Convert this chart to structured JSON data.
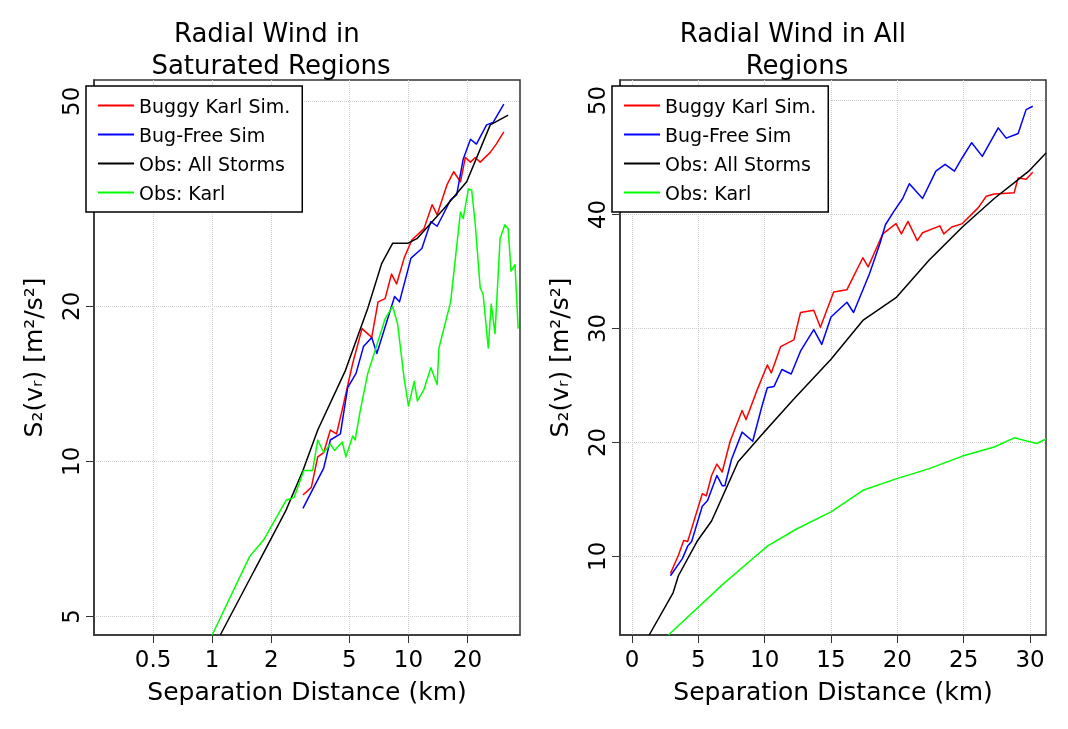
{
  "chart_data": [
    {
      "type": "line",
      "title": "Radial Wind in Saturated Regions",
      "xlabel": "Separation Distance (km)",
      "ylabel": "S₂(vᵣ) [m²/s²]",
      "log": "xy",
      "grid": true,
      "legend": "top left",
      "xlim": [
        0.25,
        37
      ],
      "xticks": [
        0.5,
        1,
        2,
        5,
        10,
        20
      ],
      "ylim": [
        4.6,
        55
      ],
      "yticks": [
        5,
        10,
        20,
        50
      ],
      "series": [
        {
          "name": "Buggy Karl Sim.",
          "color": "#ff0000",
          "x": [
            2.9,
            3.2,
            3.45,
            3.7,
            4.0,
            4.3,
            4.6,
            5.2,
            5.8,
            6.5,
            7.0,
            7.6,
            8.2,
            8.7,
            9.5,
            10.4,
            12.0,
            13.2,
            14.0,
            15.7,
            17.0,
            18.4,
            19.5,
            20.7,
            21.9,
            23.2,
            26.1,
            28.0,
            30.6
          ],
          "values": [
            8.6,
            8.9,
            10.2,
            10.4,
            11.5,
            11.3,
            12.6,
            15.5,
            18.1,
            17.4,
            20.4,
            20.7,
            23.1,
            22.1,
            24.8,
            26.9,
            28.3,
            31.5,
            30.1,
            34.4,
            36.5,
            34.9,
            38.9,
            38.1,
            38.9,
            38.1,
            39.8,
            41.3,
            43.6
          ]
        },
        {
          "name": "Bug-Free Sim",
          "color": "#0000ff",
          "x": [
            2.9,
            3.7,
            4.0,
            4.5,
            4.9,
            5.4,
            5.9,
            6.5,
            6.9,
            8.5,
            9.0,
            10.3,
            11.7,
            13.0,
            14.0,
            16.4,
            17.6,
            19.0,
            20.7,
            22.2,
            25.0,
            27.0,
            30.6
          ],
          "values": [
            8.1,
            9.7,
            11.0,
            11.3,
            13.9,
            14.8,
            16.7,
            17.4,
            16.2,
            20.9,
            20.4,
            24.8,
            25.9,
            29.2,
            28.6,
            32.2,
            32.9,
            38.6,
            42.2,
            41.3,
            45.0,
            45.5,
            49.4
          ]
        },
        {
          "name": "Obs: All Storms",
          "color": "#000000",
          "x": [
            1.1,
            2.38,
            2.9,
            3.45,
            4.77,
            6.2,
            7.3,
            8.3,
            9.9,
            11.1,
            15.1,
            19.8,
            26.1,
            32.2
          ],
          "values": [
            4.6,
            8.04,
            9.6,
            11.5,
            15.0,
            19.8,
            24.2,
            26.5,
            26.5,
            27.1,
            30.9,
            34.9,
            45.0,
            47.0
          ]
        },
        {
          "name": "Obs: Karl",
          "color": "#00ff00",
          "x": [
            1.0,
            1.55,
            1.83,
            2.38,
            2.61,
            2.93,
            3.25,
            3.45,
            3.7,
            4.0,
            4.2,
            4.6,
            4.8,
            5.2,
            5.35,
            5.67,
            6.2,
            7.6,
            8.3,
            8.8,
            9.5,
            10.0,
            10.7,
            11.1,
            12.0,
            13.0,
            14.0,
            14.3,
            16.4,
            18.4,
            19.0,
            20.2,
            21.0,
            21.9,
            23.2,
            24.0,
            25.5,
            26.4,
            27.6,
            29.3,
            31.0,
            32.2,
            33.3,
            34.9,
            36.2
          ],
          "values": [
            4.6,
            6.53,
            7.04,
            8.4,
            8.5,
            9.6,
            9.6,
            11.0,
            10.4,
            10.8,
            10.5,
            10.9,
            10.2,
            11.2,
            11.0,
            12.5,
            14.8,
            18.9,
            20.0,
            18.5,
            14.5,
            12.8,
            14.3,
            13.1,
            13.8,
            15.2,
            14.1,
            16.6,
            20.4,
            30.5,
            29.6,
            33.8,
            33.6,
            28.8,
            21.7,
            21.1,
            16.6,
            20.2,
            17.7,
            27.1,
            28.8,
            28.3,
            23.4,
            24.1,
            18.1
          ]
        }
      ]
    },
    {
      "type": "line",
      "title": "Radial Wind in All Regions",
      "xlabel": "Separation Distance (km)",
      "ylabel": "S₂(vᵣ) [m²/s²]",
      "grid": true,
      "legend": "top left",
      "xlim": [
        -0.9,
        31.2
      ],
      "xticks": [
        0,
        5,
        10,
        15,
        20,
        25,
        30
      ],
      "ylim": [
        3.1,
        51.8
      ],
      "yticks": [
        10,
        20,
        30,
        40,
        50
      ],
      "series": [
        {
          "name": "Buggy Karl Sim.",
          "color": "#ff0000",
          "x": [
            2.9,
            3.5,
            3.9,
            4.2,
            5.3,
            5.6,
            6.0,
            6.4,
            6.8,
            7.4,
            8.3,
            8.6,
            9.4,
            10.2,
            10.5,
            11.2,
            12.2,
            12.7,
            13.7,
            14.2,
            15.2,
            16.2,
            17.4,
            17.8,
            18.9,
            19.9,
            20.3,
            20.8,
            21.5,
            21.9,
            23.2,
            23.5,
            24.1,
            24.9,
            26.1,
            26.7,
            27.3,
            28.8,
            29.1,
            29.7,
            30.2
          ],
          "values": [
            8.5,
            10.1,
            11.4,
            11.3,
            15.5,
            15.3,
            17.1,
            18.1,
            17.4,
            20.1,
            22.8,
            22.0,
            24.5,
            26.8,
            26.1,
            28.4,
            29.0,
            31.4,
            31.6,
            30.1,
            33.2,
            33.4,
            36.2,
            35.4,
            38.3,
            39.2,
            38.3,
            39.4,
            37.7,
            38.4,
            39.0,
            38.3,
            38.9,
            39.2,
            40.6,
            41.6,
            41.8,
            41.9,
            43.2,
            43.1,
            43.7
          ]
        },
        {
          "name": "Bug-Free Sim",
          "color": "#0000ff",
          "x": [
            2.9,
            3.8,
            4.2,
            4.5,
            5.3,
            5.7,
            6.4,
            6.8,
            7.0,
            7.5,
            8.3,
            9.1,
            9.8,
            10.2,
            10.7,
            11.3,
            12.0,
            12.7,
            13.7,
            14.3,
            15.0,
            16.2,
            16.7,
            17.9,
            18.7,
            19.1,
            19.7,
            20.4,
            20.9,
            21.9,
            22.9,
            23.6,
            24.3,
            24.9,
            25.6,
            26.4,
            27.6,
            28.2,
            29.1,
            29.7,
            30.2
          ],
          "values": [
            8.3,
            9.8,
            10.9,
            11.3,
            14.4,
            14.9,
            17.1,
            16.2,
            16.2,
            18.5,
            20.9,
            20.1,
            23.2,
            24.8,
            24.9,
            26.4,
            26.0,
            28.0,
            29.9,
            28.6,
            31.0,
            32.3,
            31.4,
            34.8,
            37.5,
            39.1,
            40.2,
            41.4,
            42.7,
            41.4,
            43.8,
            44.4,
            43.8,
            45.0,
            46.3,
            45.1,
            47.6,
            46.7,
            47.1,
            49.2,
            49.5
          ]
        },
        {
          "name": "Obs: All Storms",
          "color": "#000000",
          "x": [
            1.3,
            3.1,
            3.5,
            4.9,
            6.0,
            8.0,
            9.8,
            12.2,
            15.0,
            17.4,
            19.9,
            22.4,
            24.9,
            27.3,
            29.9,
            31.2
          ],
          "values": [
            3.1,
            6.8,
            8.3,
            11.3,
            13.1,
            18.3,
            20.7,
            23.8,
            27.3,
            30.7,
            32.7,
            36.0,
            38.9,
            41.4,
            43.8,
            45.4
          ]
        },
        {
          "name": "Obs: Karl",
          "color": "#00ff00",
          "x": [
            2.75,
            6.8,
            9.0,
            10.2,
            12.4,
            15.0,
            17.4,
            19.9,
            22.4,
            24.9,
            27.3,
            28.8,
            30.5,
            31.2
          ],
          "values": [
            3.1,
            7.5,
            9.7,
            10.9,
            12.4,
            13.9,
            15.8,
            16.8,
            17.7,
            18.8,
            19.6,
            20.4,
            19.9,
            20.3
          ]
        }
      ]
    }
  ]
}
